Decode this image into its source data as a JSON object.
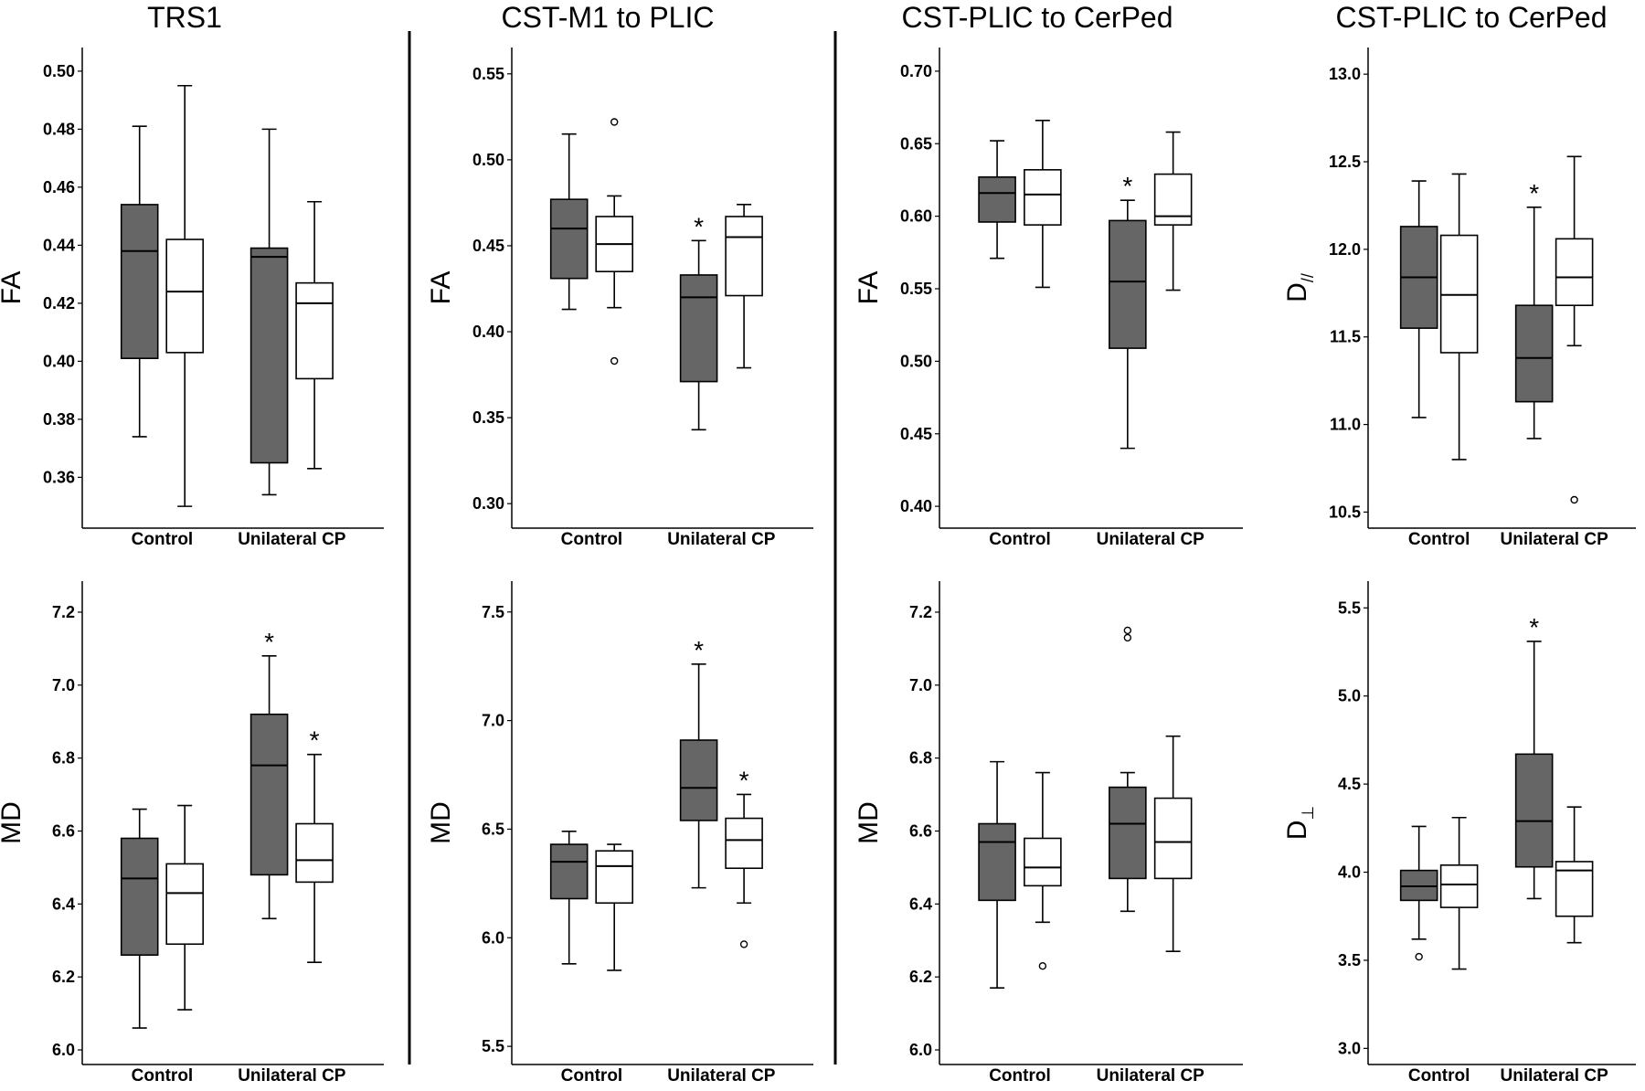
{
  "colors": {
    "dark_box": "#666666",
    "light_box": "#ffffff",
    "stroke": "#000000"
  },
  "column_titles": [
    "TRS1",
    "CST-M1 to PLIC",
    "CST-PLIC to CerPed",
    "CST-PLIC to CerPed"
  ],
  "categories": [
    "Control",
    "Unilateral CP"
  ],
  "chart_data": [
    {
      "type": "box",
      "panel": "trs1-fa",
      "ylabel": "FA",
      "ylim": [
        0.345,
        0.505
      ],
      "ticks": [
        0.36,
        0.38,
        0.4,
        0.42,
        0.44,
        0.46,
        0.48,
        0.5
      ],
      "tick_labels": [
        "0.36",
        "0.38",
        "0.40",
        "0.42",
        "0.44",
        "0.46",
        "0.48",
        "0.50"
      ],
      "boxes": [
        {
          "group": "Control",
          "fill": "dark",
          "min": 0.374,
          "q1": 0.401,
          "median": 0.438,
          "q3": 0.454,
          "max": 0.481,
          "outliers": [],
          "star": false
        },
        {
          "group": "Control",
          "fill": "light",
          "min": 0.35,
          "q1": 0.403,
          "median": 0.424,
          "q3": 0.442,
          "max": 0.495,
          "outliers": [],
          "star": false
        },
        {
          "group": "Unilateral CP",
          "fill": "dark",
          "min": 0.354,
          "q1": 0.365,
          "median": 0.436,
          "q3": 0.439,
          "max": 0.48,
          "outliers": [],
          "star": false
        },
        {
          "group": "Unilateral CP",
          "fill": "light",
          "min": 0.363,
          "q1": 0.394,
          "median": 0.42,
          "q3": 0.427,
          "max": 0.455,
          "outliers": [],
          "star": false
        }
      ]
    },
    {
      "type": "box",
      "panel": "cst-m1-fa",
      "ylabel": "FA",
      "ylim": [
        0.29,
        0.56
      ],
      "ticks": [
        0.3,
        0.35,
        0.4,
        0.45,
        0.5,
        0.55
      ],
      "tick_labels": [
        "0.30",
        "0.35",
        "0.40",
        "0.45",
        "0.50",
        "0.55"
      ],
      "boxes": [
        {
          "group": "Control",
          "fill": "dark",
          "min": 0.413,
          "q1": 0.431,
          "median": 0.46,
          "q3": 0.477,
          "max": 0.515,
          "outliers": [],
          "star": false
        },
        {
          "group": "Control",
          "fill": "light",
          "min": 0.414,
          "q1": 0.435,
          "median": 0.451,
          "q3": 0.467,
          "max": 0.479,
          "outliers": [
            0.522,
            0.383
          ],
          "star": false
        },
        {
          "group": "Unilateral CP",
          "fill": "dark",
          "min": 0.343,
          "q1": 0.371,
          "median": 0.42,
          "q3": 0.433,
          "max": 0.453,
          "outliers": [],
          "star": true
        },
        {
          "group": "Unilateral CP",
          "fill": "light",
          "min": 0.379,
          "q1": 0.421,
          "median": 0.455,
          "q3": 0.467,
          "max": 0.474,
          "outliers": [],
          "star": false
        }
      ]
    },
    {
      "type": "box",
      "panel": "cst-plic-fa",
      "ylabel": "FA",
      "ylim": [
        0.39,
        0.71
      ],
      "ticks": [
        0.4,
        0.45,
        0.5,
        0.55,
        0.6,
        0.65,
        0.7
      ],
      "tick_labels": [
        "0.40",
        "0.45",
        "0.50",
        "0.55",
        "0.60",
        "0.65",
        "0.70"
      ],
      "boxes": [
        {
          "group": "Control",
          "fill": "dark",
          "min": 0.571,
          "q1": 0.596,
          "median": 0.616,
          "q3": 0.627,
          "max": 0.652,
          "outliers": [],
          "star": false
        },
        {
          "group": "Control",
          "fill": "light",
          "min": 0.551,
          "q1": 0.594,
          "median": 0.615,
          "q3": 0.632,
          "max": 0.666,
          "outliers": [],
          "star": false
        },
        {
          "group": "Unilateral CP",
          "fill": "dark",
          "min": 0.44,
          "q1": 0.509,
          "median": 0.555,
          "q3": 0.597,
          "max": 0.611,
          "outliers": [],
          "star": true
        },
        {
          "group": "Unilateral CP",
          "fill": "light",
          "min": 0.549,
          "q1": 0.594,
          "median": 0.6,
          "q3": 0.629,
          "max": 0.658,
          "outliers": [],
          "star": false
        }
      ]
    },
    {
      "type": "box",
      "panel": "cst-plic-dpar",
      "ylabel": "D",
      "ylabel_sub": "//",
      "ylim": [
        10.45,
        13.1
      ],
      "ticks": [
        10.5,
        11.0,
        11.5,
        12.0,
        12.5,
        13.0
      ],
      "tick_labels": [
        "10.5",
        "11.0",
        "11.5",
        "12.0",
        "12.5",
        "13.0"
      ],
      "boxes": [
        {
          "group": "Control",
          "fill": "dark",
          "min": 11.04,
          "q1": 11.55,
          "median": 11.84,
          "q3": 12.13,
          "max": 12.39,
          "outliers": [],
          "star": false
        },
        {
          "group": "Control",
          "fill": "light",
          "min": 10.8,
          "q1": 11.41,
          "median": 11.74,
          "q3": 12.08,
          "max": 12.43,
          "outliers": [],
          "star": false
        },
        {
          "group": "Unilateral CP",
          "fill": "dark",
          "min": 10.92,
          "q1": 11.13,
          "median": 11.38,
          "q3": 11.68,
          "max": 12.24,
          "outliers": [],
          "star": true
        },
        {
          "group": "Unilateral CP",
          "fill": "light",
          "min": 11.45,
          "q1": 11.68,
          "median": 11.84,
          "q3": 12.06,
          "max": 12.53,
          "outliers": [
            10.57
          ],
          "star": false
        }
      ]
    },
    {
      "type": "box",
      "panel": "trs1-md",
      "ylabel": "MD",
      "ylim": [
        5.98,
        7.26
      ],
      "ticks": [
        6.0,
        6.2,
        6.4,
        6.6,
        6.8,
        7.0,
        7.2
      ],
      "tick_labels": [
        "6.0",
        "6.2",
        "6.4",
        "6.6",
        "6.8",
        "7.0",
        "7.2"
      ],
      "boxes": [
        {
          "group": "Control",
          "fill": "dark",
          "min": 6.06,
          "q1": 6.26,
          "median": 6.47,
          "q3": 6.58,
          "max": 6.66,
          "outliers": [],
          "star": false
        },
        {
          "group": "Control",
          "fill": "light",
          "min": 6.11,
          "q1": 6.29,
          "median": 6.43,
          "q3": 6.51,
          "max": 6.67,
          "outliers": [],
          "star": false
        },
        {
          "group": "Unilateral CP",
          "fill": "dark",
          "min": 6.36,
          "q1": 6.48,
          "median": 6.78,
          "q3": 6.92,
          "max": 7.08,
          "outliers": [],
          "star": true
        },
        {
          "group": "Unilateral CP",
          "fill": "light",
          "min": 6.24,
          "q1": 6.46,
          "median": 6.52,
          "q3": 6.62,
          "max": 6.81,
          "outliers": [],
          "star": true
        }
      ]
    },
    {
      "type": "box",
      "panel": "cst-m1-md",
      "ylabel": "MD",
      "ylim": [
        5.45,
        7.6
      ],
      "ticks": [
        5.5,
        6.0,
        6.5,
        7.0,
        7.5
      ],
      "tick_labels": [
        "5.5",
        "6.0",
        "6.5",
        "7.0",
        "7.5"
      ],
      "boxes": [
        {
          "group": "Control",
          "fill": "dark",
          "min": 5.88,
          "q1": 6.18,
          "median": 6.35,
          "q3": 6.43,
          "max": 6.49,
          "outliers": [],
          "star": false
        },
        {
          "group": "Control",
          "fill": "light",
          "min": 5.85,
          "q1": 6.16,
          "median": 6.33,
          "q3": 6.4,
          "max": 6.43,
          "outliers": [],
          "star": false
        },
        {
          "group": "Unilateral CP",
          "fill": "dark",
          "min": 6.23,
          "q1": 6.54,
          "median": 6.69,
          "q3": 6.91,
          "max": 7.26,
          "outliers": [],
          "star": true
        },
        {
          "group": "Unilateral CP",
          "fill": "light",
          "min": 6.16,
          "q1": 6.32,
          "median": 6.45,
          "q3": 6.55,
          "max": 6.66,
          "outliers": [
            5.97
          ],
          "star": true
        }
      ]
    },
    {
      "type": "box",
      "panel": "cst-plic-md",
      "ylabel": "MD",
      "ylim": [
        5.98,
        7.26
      ],
      "ticks": [
        6.0,
        6.2,
        6.4,
        6.6,
        6.8,
        7.0,
        7.2
      ],
      "tick_labels": [
        "6.0",
        "6.2",
        "6.4",
        "6.6",
        "6.8",
        "7.0",
        "7.2"
      ],
      "boxes": [
        {
          "group": "Control",
          "fill": "dark",
          "min": 6.17,
          "q1": 6.41,
          "median": 6.57,
          "q3": 6.62,
          "max": 6.79,
          "outliers": [],
          "star": false
        },
        {
          "group": "Control",
          "fill": "light",
          "min": 6.35,
          "q1": 6.45,
          "median": 6.5,
          "q3": 6.58,
          "max": 6.76,
          "outliers": [
            6.23
          ],
          "star": false
        },
        {
          "group": "Unilateral CP",
          "fill": "dark",
          "min": 6.38,
          "q1": 6.47,
          "median": 6.62,
          "q3": 6.72,
          "max": 6.76,
          "outliers": [
            7.15,
            7.13
          ],
          "star": false
        },
        {
          "group": "Unilateral CP",
          "fill": "light",
          "min": 6.27,
          "q1": 6.47,
          "median": 6.57,
          "q3": 6.69,
          "max": 6.86,
          "outliers": [],
          "star": false
        }
      ]
    },
    {
      "type": "box",
      "panel": "cst-plic-dperp",
      "ylabel": "D",
      "ylabel_sub": "⊥",
      "ylim": [
        2.95,
        5.6
      ],
      "ticks": [
        3.0,
        3.5,
        4.0,
        4.5,
        5.0,
        5.5
      ],
      "tick_labels": [
        "3.0",
        "3.5",
        "4.0",
        "4.5",
        "5.0",
        "5.5"
      ],
      "boxes": [
        {
          "group": "Control",
          "fill": "dark",
          "min": 3.62,
          "q1": 3.84,
          "median": 3.92,
          "q3": 4.01,
          "max": 4.26,
          "outliers": [
            3.52
          ],
          "star": false
        },
        {
          "group": "Control",
          "fill": "light",
          "min": 3.45,
          "q1": 3.8,
          "median": 3.93,
          "q3": 4.04,
          "max": 4.31,
          "outliers": [],
          "star": false
        },
        {
          "group": "Unilateral CP",
          "fill": "dark",
          "min": 3.85,
          "q1": 4.03,
          "median": 4.29,
          "q3": 4.67,
          "max": 5.31,
          "outliers": [],
          "star": true
        },
        {
          "group": "Unilateral CP",
          "fill": "light",
          "min": 3.6,
          "q1": 3.75,
          "median": 4.01,
          "q3": 4.06,
          "max": 4.37,
          "outliers": [],
          "star": false
        }
      ]
    }
  ]
}
